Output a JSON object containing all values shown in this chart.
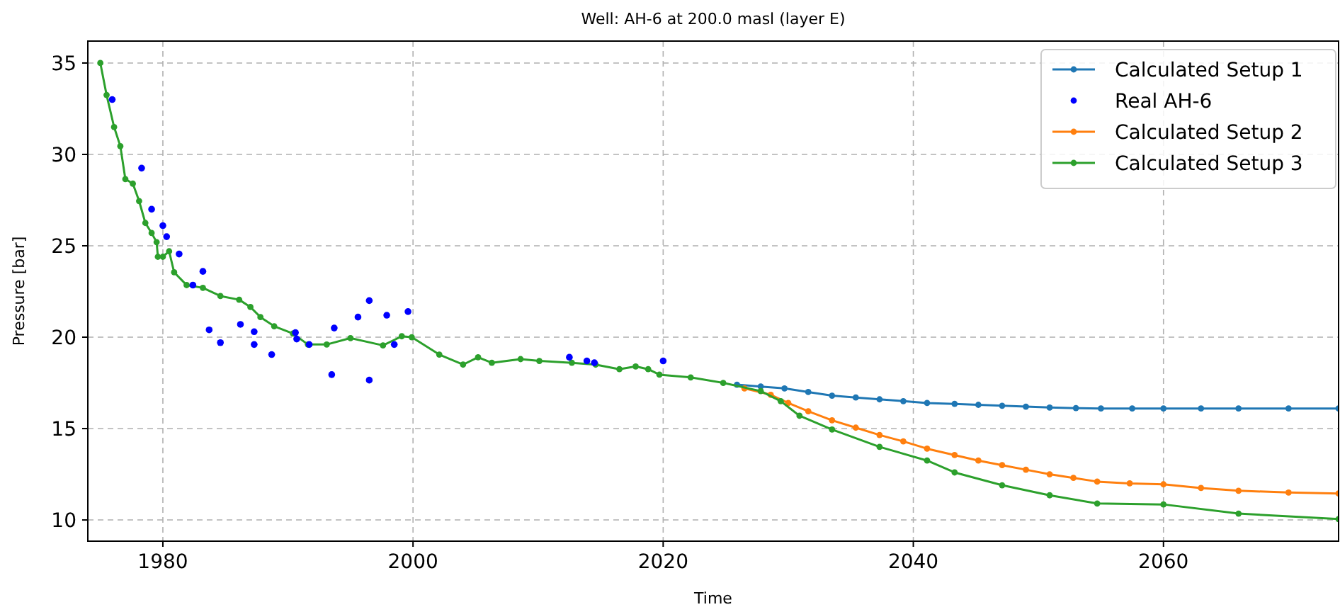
{
  "chart_data": {
    "type": "line",
    "title": "Well: AH-6 at 200.0 masl (layer E)",
    "xlabel": "Time",
    "ylabel": "Pressure [bar]",
    "xlim": [
      1974,
      2074
    ],
    "xticks": [
      1980,
      2000,
      2020,
      2040,
      2060
    ],
    "ylim": [
      8.84,
      36.2
    ],
    "yticks": [
      10,
      15,
      20,
      25,
      30,
      35
    ],
    "grid": true,
    "legend": "top right",
    "marker": "circle",
    "line_style": "solid",
    "series": [
      {
        "name": "Calculated Setup 1",
        "color": "#1f77b4",
        "x": [
          2025.9,
          2027.8,
          2029.7,
          2031.6,
          2033.5,
          2035.4,
          2037.3,
          2039.2,
          2041.1,
          2043.3,
          2045.2,
          2047.1,
          2049,
          2050.9,
          2053,
          2055,
          2057.5,
          2060,
          2063,
          2066,
          2070,
          2074
        ],
        "values": [
          17.4,
          17.3,
          17.2,
          17.0,
          16.8,
          16.7,
          16.6,
          16.5,
          16.4,
          16.35,
          16.3,
          16.25,
          16.2,
          16.15,
          16.12,
          16.1,
          16.1,
          16.1,
          16.1,
          16.1,
          16.1,
          16.1
        ]
      },
      {
        "name": "Real AH-6",
        "type": "scatter",
        "color": "#0000ff",
        "x": [
          1975.95,
          1978.3,
          1979.1,
          1980.0,
          1980.3,
          1981.3,
          1982.4,
          1983.2,
          1983.7,
          1984.6,
          1986.2,
          1987.3,
          1987.3,
          1988.7,
          1990.6,
          1990.7,
          1991.7,
          1993.5,
          1993.7,
          1995.6,
          1996.5,
          1996.5,
          1997.9,
          1998.5,
          1999.6,
          2012.5,
          2013.9,
          2014.5,
          2020.0
        ],
        "values": [
          33.0,
          29.25,
          27.0,
          26.1,
          25.5,
          24.55,
          22.85,
          23.6,
          20.4,
          19.7,
          20.7,
          20.3,
          19.6,
          19.05,
          20.25,
          19.9,
          19.6,
          17.95,
          20.5,
          21.1,
          22.0,
          17.65,
          21.2,
          19.6,
          21.4,
          18.9,
          18.7,
          18.6,
          18.7
        ]
      },
      {
        "name": "Calculated Setup 2",
        "color": "#ff7f0e",
        "x": [
          2026.5,
          2028.6,
          2030,
          2031.6,
          2033.5,
          2035.4,
          2037.3,
          2039.2,
          2041.1,
          2043.3,
          2045.2,
          2047.1,
          2049,
          2050.9,
          2052.8,
          2054.7,
          2057.3,
          2060,
          2063,
          2066,
          2070,
          2074
        ],
        "values": [
          17.2,
          16.85,
          16.4,
          15.95,
          15.45,
          15.05,
          14.65,
          14.3,
          13.9,
          13.55,
          13.25,
          13.0,
          12.75,
          12.5,
          12.3,
          12.1,
          12.0,
          11.95,
          11.75,
          11.6,
          11.5,
          11.45
        ]
      },
      {
        "name": "Calculated Setup 3",
        "color": "#2ca02c",
        "x": [
          1975.0,
          1975.5,
          1976.1,
          1976.6,
          1977.0,
          1977.6,
          1978.1,
          1978.6,
          1979.1,
          1979.5,
          1979.6,
          1980.0,
          1980.5,
          1980.9,
          1981.9,
          1983.2,
          1984.6,
          1986.1,
          1987.0,
          1987.8,
          1988.9,
          1990.4,
          1991.6,
          1993.1,
          1995.0,
          1997.6,
          1999.1,
          1999.9,
          2002.1,
          2004.0,
          2005.2,
          2006.3,
          2008.6,
          2010.1,
          2012.7,
          2014.6,
          2016.5,
          2017.8,
          2018.8,
          2019.7,
          2022.2,
          2024.8,
          2027.8,
          2029.4,
          2030.9,
          2033.5,
          2037.3,
          2041.1,
          2043.3,
          2047.1,
          2050.9,
          2054.7,
          2060,
          2066,
          2074
        ],
        "values": [
          35.0,
          33.25,
          31.5,
          30.45,
          28.65,
          28.4,
          27.45,
          26.25,
          25.7,
          25.2,
          24.4,
          24.4,
          24.7,
          23.55,
          22.85,
          22.7,
          22.25,
          22.05,
          21.65,
          21.1,
          20.6,
          20.2,
          19.6,
          19.6,
          19.95,
          19.55,
          20.05,
          20.0,
          19.05,
          18.5,
          18.9,
          18.6,
          18.8,
          18.7,
          18.6,
          18.5,
          18.25,
          18.4,
          18.25,
          17.95,
          17.8,
          17.5,
          17.05,
          16.5,
          15.7,
          14.95,
          14.0,
          13.25,
          12.6,
          11.9,
          11.35,
          10.9,
          10.85,
          10.35,
          10.05
        ]
      }
    ]
  }
}
